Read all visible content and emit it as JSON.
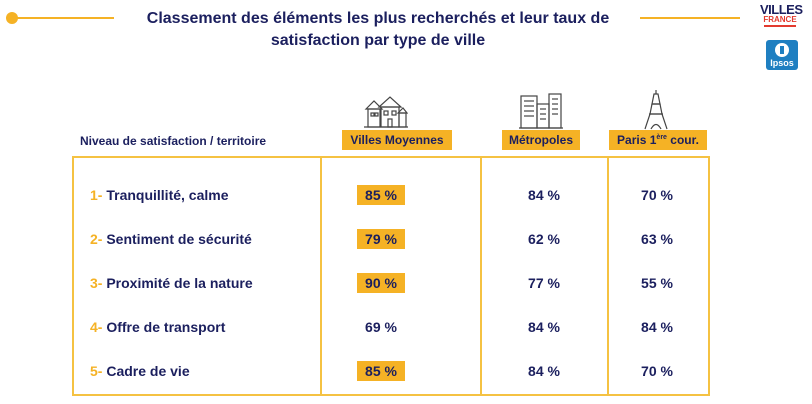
{
  "title": "Classement des éléments les plus recherchés et leur taux de satisfaction par type de ville",
  "logos": {
    "villes_line1": "VILLES",
    "villes_line2": "FRANCE",
    "ipsos": "Ipsos"
  },
  "colors": {
    "accent": "#f5b225",
    "text": "#1b1f5e",
    "ipsos_blue": "#1f7fc1",
    "villes_red": "#e33a2e"
  },
  "chart_data": {
    "type": "table",
    "row_header": "Niveau de satisfaction / territoire",
    "columns": [
      {
        "label": "Villes Moyennes",
        "icon": "town-houses-icon"
      },
      {
        "label": "Métropoles",
        "icon": "city-buildings-icon"
      },
      {
        "label_main": "Paris 1",
        "label_sup": "ère",
        "label_tail": " cour.",
        "icon": "eiffel-tower-icon"
      }
    ],
    "rows": [
      {
        "num": "1-",
        "label": "Tranquillité, calme",
        "values": [
          "85 %",
          "84 %",
          "70 %"
        ],
        "highlight": [
          true,
          false,
          false
        ]
      },
      {
        "num": "2-",
        "label": "Sentiment de sécurité",
        "values": [
          "79 %",
          "62 %",
          "63 %"
        ],
        "highlight": [
          true,
          false,
          false
        ]
      },
      {
        "num": "3-",
        "label": "Proximité de la nature",
        "values": [
          "90 %",
          "77 %",
          "55 %"
        ],
        "highlight": [
          true,
          false,
          false
        ]
      },
      {
        "num": "4-",
        "label": "Offre de transport",
        "values": [
          "69 %",
          "84 %",
          "84 %"
        ],
        "highlight": [
          false,
          false,
          false
        ]
      },
      {
        "num": "5-",
        "label": "Cadre de vie",
        "values": [
          "85 %",
          "84 %",
          "70 %"
        ],
        "highlight": [
          true,
          false,
          false
        ]
      }
    ]
  }
}
